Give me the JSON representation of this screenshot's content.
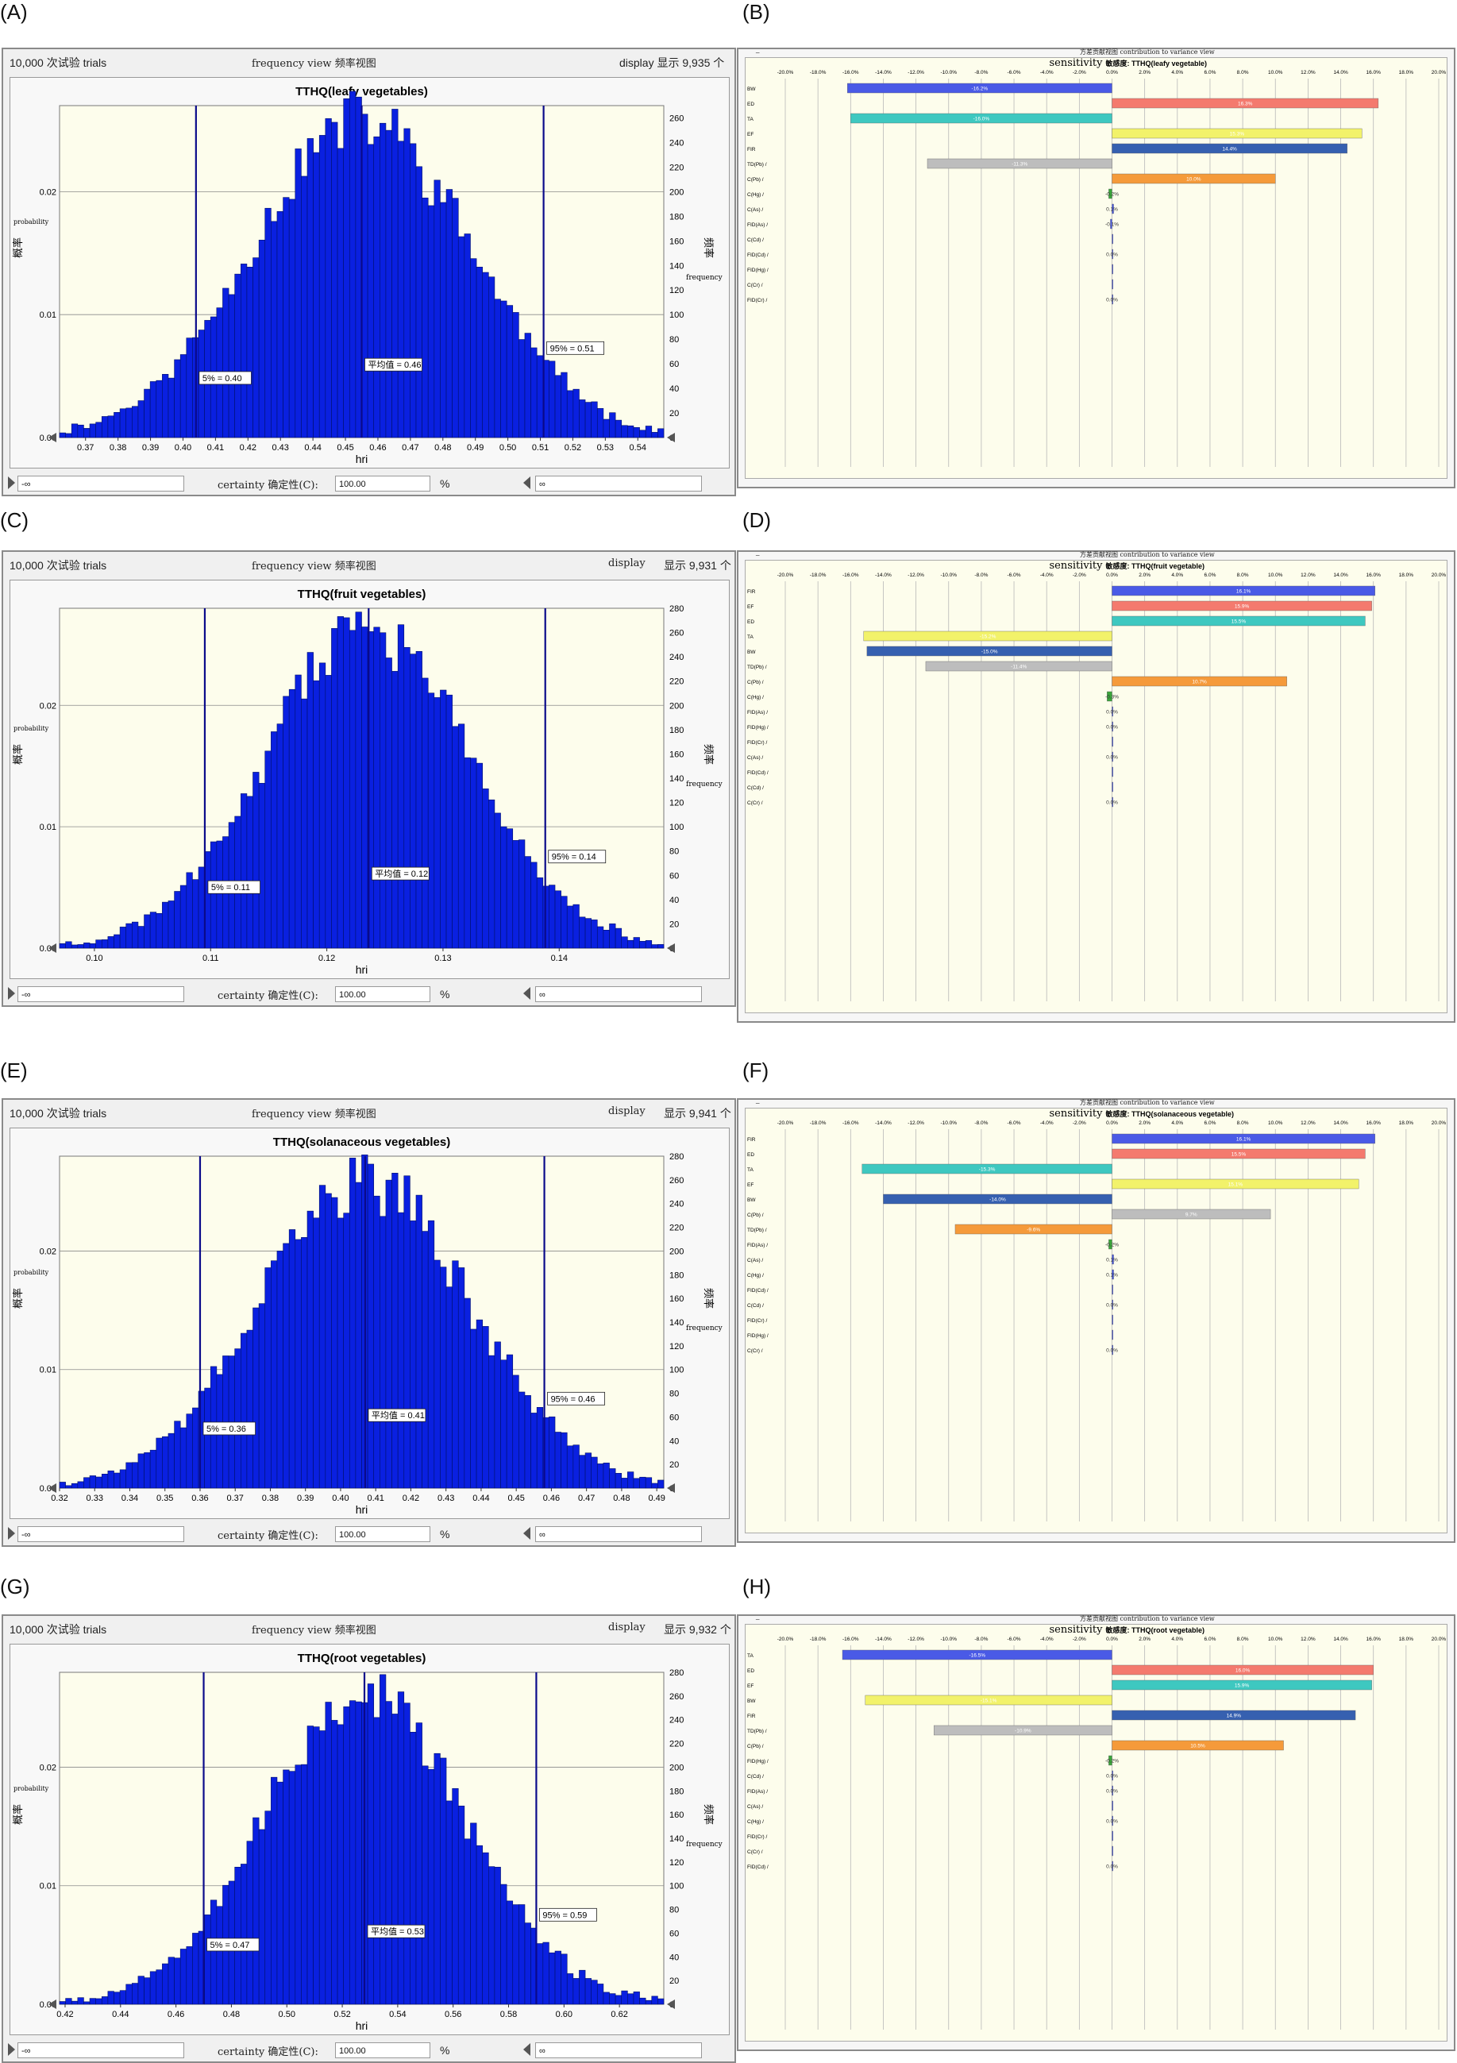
{
  "panel_labels": [
    "(A)",
    "(B)",
    "(C)",
    "(D)",
    "(E)",
    "(F)",
    "(G)",
    "(H)"
  ],
  "crystal": [
    {
      "trials_label": "10,000 次试验 trials",
      "view_label": "frequency view  频率视图",
      "display_label": "display",
      "display_count": "显示 9,935 个",
      "certainty_label": "certainty 确定性(C):",
      "certainty_value": "100.00",
      "percent": "%",
      "left_value": "-∞",
      "right_value": "∞"
    },
    {
      "trials_label": "10,000 次试验 trials",
      "view_label": "frequency view  频率视图",
      "display_label": "display",
      "display_count": "显示 9,931 个",
      "certainty_label": "certainty 确定性(C):",
      "certainty_value": "100.00",
      "percent": "%",
      "left_value": "-∞",
      "right_value": "∞"
    },
    {
      "trials_label": "10,000 次试验 trials",
      "view_label": "frequency view  频率视图",
      "display_label": "display",
      "display_count": "显示 9,941 个",
      "certainty_label": "certainty 确定性(C):",
      "certainty_value": "100.00",
      "percent": "%",
      "left_value": "-∞",
      "right_value": "∞"
    },
    {
      "trials_label": "10,000 次试验 trials",
      "view_label": "frequency view  频率视图",
      "display_label": "display",
      "display_count": "显示 9,932 个",
      "certainty_label": "certainty 确定性(C):",
      "certainty_value": "100.00",
      "percent": "%",
      "left_value": "-∞",
      "right_value": "∞"
    }
  ],
  "sens_header": [
    {
      "view_label": "方差贡献视图  contribution to variance view"
    },
    {
      "view_label": "方差贡献视图  contribution to variance view"
    },
    {
      "view_label": "方差贡献视图  contribution to variance view"
    },
    {
      "view_label": "方差贡献视图  contribution to variance view"
    }
  ],
  "colors": {
    "hist_bar": "#0a20e0",
    "hist_edge": "#00106a",
    "vline": "#0a0a8a",
    "plot_bg": "#fdfdec",
    "grid": "#8a8a8a",
    "sens_blue": "#4a5ae6",
    "sens_red": "#f47a6e",
    "sens_teal": "#3ec8c0",
    "sens_yellow": "#f2f26a",
    "sens_navy": "#3660b0",
    "sens_gray": "#bdbdbd",
    "sens_orange": "#f59a3a",
    "sens_green": "#3aa53a"
  },
  "chart_data": [
    {
      "type": "bar",
      "title": "TTHQ(leafy vegetables)",
      "xlabel": "hri",
      "ylabel_left": "概率",
      "ylabel_left_en": "probability",
      "ylabel_right": "频率",
      "ylabel_right_en": "frequency",
      "x_range": [
        0.362,
        0.548
      ],
      "x_ticks": [
        "0.37",
        "0.38",
        "0.39",
        "0.40",
        "0.41",
        "0.42",
        "0.43",
        "0.44",
        "0.45",
        "0.46",
        "0.47",
        "0.48",
        "0.49",
        "0.50",
        "0.51",
        "0.52",
        "0.53",
        "0.54"
      ],
      "y_left_ticks": [
        "0.00",
        "0.01",
        "0.02"
      ],
      "y_right_max": 270,
      "y_right_ticks": [
        "0",
        "20",
        "40",
        "60",
        "80",
        "100",
        "120",
        "140",
        "160",
        "180",
        "200",
        "220",
        "240",
        "260"
      ],
      "mean": 0.455,
      "sd": 0.0335,
      "peak": 258,
      "bins": 100,
      "seed": 11,
      "markers": [
        {
          "x": 0.404,
          "label": "5% = 0.40"
        },
        {
          "x": 0.455,
          "label": "平均值 = 0.46"
        },
        {
          "x": 0.511,
          "label": "95% = 0.51"
        }
      ]
    },
    {
      "type": "bar",
      "title": "TTHQ(fruit vegetables)",
      "xlabel": "hri",
      "ylabel_left": "概率",
      "ylabel_left_en": "probability",
      "ylabel_right": "频率",
      "ylabel_right_en": "frequency",
      "x_range": [
        0.097,
        0.149
      ],
      "x_ticks": [
        "0.10",
        "0.11",
        "0.12",
        "0.13",
        "0.14"
      ],
      "y_left_ticks": [
        "0.00",
        "0.01",
        "0.02"
      ],
      "y_right_max": 280,
      "y_right_ticks": [
        "0",
        "20",
        "40",
        "60",
        "80",
        "100",
        "120",
        "140",
        "160",
        "180",
        "200",
        "220",
        "240",
        "260",
        "280"
      ],
      "mean": 0.1235,
      "sd": 0.0088,
      "peak": 260,
      "bins": 100,
      "seed": 23,
      "markers": [
        {
          "x": 0.1095,
          "label": "5% = 0.11"
        },
        {
          "x": 0.1236,
          "label": "平均值 = 0.12"
        },
        {
          "x": 0.1388,
          "label": "95% = 0.14"
        }
      ]
    },
    {
      "type": "bar",
      "title": "TTHQ(solanaceous vegetables)",
      "xlabel": "hri",
      "ylabel_left": "概率",
      "ylabel_left_en": "probability",
      "ylabel_right": "频率",
      "ylabel_right_en": "frequency",
      "x_range": [
        0.32,
        0.492
      ],
      "x_ticks": [
        "0.32",
        "0.33",
        "0.34",
        "0.35",
        "0.36",
        "0.37",
        "0.38",
        "0.39",
        "0.40",
        "0.41",
        "0.42",
        "0.43",
        "0.44",
        "0.45",
        "0.46",
        "0.47",
        "0.48",
        "0.49"
      ],
      "y_left_ticks": [
        "0.00",
        "0.01",
        "0.02"
      ],
      "y_right_max": 280,
      "y_right_ticks": [
        "0",
        "20",
        "40",
        "60",
        "80",
        "100",
        "120",
        "140",
        "160",
        "180",
        "200",
        "220",
        "240",
        "260",
        "280"
      ],
      "mean": 0.407,
      "sd": 0.03,
      "peak": 258,
      "bins": 100,
      "seed": 37,
      "markers": [
        {
          "x": 0.36,
          "label": "5% = 0.36"
        },
        {
          "x": 0.407,
          "label": "平均值 = 0.41"
        },
        {
          "x": 0.458,
          "label": "95% = 0.46"
        }
      ]
    },
    {
      "type": "bar",
      "title": "TTHQ(root vegetables)",
      "xlabel": "hri",
      "ylabel_left": "概率",
      "ylabel_left_en": "probability",
      "ylabel_right": "频率",
      "ylabel_right_en": "frequency",
      "x_range": [
        0.418,
        0.636
      ],
      "x_ticks": [
        "0.42",
        "0.44",
        "0.46",
        "0.48",
        "0.50",
        "0.52",
        "0.54",
        "0.56",
        "0.58",
        "0.60",
        "0.62"
      ],
      "y_left_ticks": [
        "0.00",
        "0.01",
        "0.02"
      ],
      "y_right_max": 280,
      "y_right_ticks": [
        "0",
        "20",
        "40",
        "60",
        "80",
        "100",
        "120",
        "140",
        "160",
        "180",
        "200",
        "220",
        "240",
        "260",
        "280"
      ],
      "mean": 0.528,
      "sd": 0.036,
      "peak": 262,
      "bins": 100,
      "seed": 53,
      "markers": [
        {
          "x": 0.47,
          "label": "5% = 0.47"
        },
        {
          "x": 0.528,
          "label": "平均值 = 0.53"
        },
        {
          "x": 0.59,
          "label": "95% = 0.59"
        }
      ]
    },
    {
      "type": "bar",
      "orientation": "horizontal",
      "title_en": "sensitivity",
      "title": "敏感度: TTHQ(leafy vegetable)",
      "x_range": [
        -20,
        20
      ],
      "x_ticks": [
        "-20.0%",
        "-18.0%",
        "-16.0%",
        "-14.0%",
        "-12.0%",
        "-10.0%",
        "-8.0%",
        "-6.0%",
        "-4.0%",
        "-2.0%",
        "0.0%",
        "2.0%",
        "4.0%",
        "6.0%",
        "8.0%",
        "10.0%",
        "12.0%",
        "14.0%",
        "16.0%",
        "18.0%",
        "20.0%"
      ],
      "categories": [
        "BW",
        "ED",
        "TA",
        "EF",
        "FIR",
        "TD(Pb) /",
        "C(Pb) /",
        "C(Hg) /",
        "C(As) /",
        "FID(As) /",
        "C(Cd) /",
        "FID(Cd) /",
        "FID(Hg) /",
        "C(Cr) /",
        "FID(Cr) /"
      ],
      "values": [
        -16.2,
        16.3,
        -16.0,
        15.3,
        14.4,
        -11.3,
        10.0,
        -0.2,
        0.1,
        -0.1,
        0.0,
        0.0,
        0.0,
        0.0,
        0.0
      ],
      "value_labels": [
        "-16.2%",
        "16.3%",
        "-16.0%",
        "15.3%",
        "14.4%",
        "-11.3%",
        "10.0%",
        "-0.2%",
        "0.1%",
        "-0.1%",
        "",
        "0.0%",
        "",
        "",
        "0.0%"
      ],
      "colors": [
        "sens_blue",
        "sens_red",
        "sens_teal",
        "sens_yellow",
        "sens_navy",
        "sens_gray",
        "sens_orange",
        "sens_green",
        "sens_blue",
        "sens_blue",
        "sens_blue",
        "sens_blue",
        "sens_blue",
        "sens_blue",
        "sens_blue"
      ]
    },
    {
      "type": "bar",
      "orientation": "horizontal",
      "title_en": "sensitivity",
      "title": "敏感度: TTHQ(fruit vegetable)",
      "x_range": [
        -20,
        20
      ],
      "x_ticks": [
        "-20.0%",
        "-18.0%",
        "-16.0%",
        "-14.0%",
        "-12.0%",
        "-10.0%",
        "-8.0%",
        "-6.0%",
        "-4.0%",
        "-2.0%",
        "0.0%",
        "2.0%",
        "4.0%",
        "6.0%",
        "8.0%",
        "10.0%",
        "12.0%",
        "14.0%",
        "16.0%",
        "18.0%",
        "20.0%"
      ],
      "categories": [
        "FIR",
        "EF",
        "ED",
        "TA",
        "BW",
        "TD(Pb) /",
        "C(Pb) /",
        "C(Hg) /",
        "FID(As) /",
        "FID(Hg) /",
        "FID(Cr) /",
        "C(As) /",
        "FID(Cd) /",
        "C(Cd) /",
        "C(Cr) /"
      ],
      "values": [
        16.1,
        15.9,
        15.5,
        -15.2,
        -15.0,
        -11.4,
        10.7,
        -0.3,
        0.0,
        0.0,
        0.0,
        0.0,
        0.0,
        0.0,
        0.0
      ],
      "value_labels": [
        "16.1%",
        "15.9%",
        "15.5%",
        "-15.2%",
        "-15.0%",
        "-11.4%",
        "10.7%",
        "-0.3%",
        "0.0%",
        "0.0%",
        "",
        "0.0%",
        "",
        "",
        "0.0%"
      ],
      "colors": [
        "sens_blue",
        "sens_red",
        "sens_teal",
        "sens_yellow",
        "sens_navy",
        "sens_gray",
        "sens_orange",
        "sens_green",
        "sens_blue",
        "sens_blue",
        "sens_blue",
        "sens_blue",
        "sens_blue",
        "sens_blue",
        "sens_blue"
      ]
    },
    {
      "type": "bar",
      "orientation": "horizontal",
      "title_en": "sensitivity",
      "title": "敏感度: TTHQ(solanaceous vegetable)",
      "x_range": [
        -20,
        20
      ],
      "x_ticks": [
        "-20.0%",
        "-18.0%",
        "-16.0%",
        "-14.0%",
        "-12.0%",
        "-10.0%",
        "-8.0%",
        "-6.0%",
        "-4.0%",
        "-2.0%",
        "0.0%",
        "2.0%",
        "4.0%",
        "6.0%",
        "8.0%",
        "10.0%",
        "12.0%",
        "14.0%",
        "16.0%",
        "18.0%",
        "20.0%"
      ],
      "categories": [
        "FIR",
        "ED",
        "TA",
        "EF",
        "BW",
        "C(Pb) /",
        "TD(Pb) /",
        "FID(As) /",
        "C(As) /",
        "C(Hg) /",
        "FID(Cd) /",
        "C(Cd) /",
        "FID(Cr) /",
        "FID(Hg) /",
        "C(Cr) /"
      ],
      "values": [
        16.1,
        15.5,
        -15.3,
        15.1,
        -14.0,
        9.7,
        -9.6,
        -0.2,
        0.1,
        0.1,
        0.0,
        0.0,
        0.0,
        0.0,
        0.0
      ],
      "value_labels": [
        "16.1%",
        "15.5%",
        "-15.3%",
        "15.1%",
        "-14.0%",
        "9.7%",
        "-9.6%",
        "-0.2%",
        "0.1%",
        "0.1%",
        "",
        "0.0%",
        "",
        "",
        "0.0%"
      ],
      "colors": [
        "sens_blue",
        "sens_red",
        "sens_teal",
        "sens_yellow",
        "sens_navy",
        "sens_gray",
        "sens_orange",
        "sens_green",
        "sens_blue",
        "sens_blue",
        "sens_blue",
        "sens_blue",
        "sens_blue",
        "sens_blue",
        "sens_blue"
      ]
    },
    {
      "type": "bar",
      "orientation": "horizontal",
      "title_en": "sensitivity",
      "title": "敏感度: TTHQ(root vegetable)",
      "x_range": [
        -20,
        20
      ],
      "x_ticks": [
        "-20.0%",
        "-18.0%",
        "-16.0%",
        "-14.0%",
        "-12.0%",
        "-10.0%",
        "-8.0%",
        "-6.0%",
        "-4.0%",
        "-2.0%",
        "0.0%",
        "2.0%",
        "4.0%",
        "6.0%",
        "8.0%",
        "10.0%",
        "12.0%",
        "14.0%",
        "16.0%",
        "18.0%",
        "20.0%"
      ],
      "categories": [
        "TA",
        "ED",
        "EF",
        "BW",
        "FIR",
        "TD(Pb) /",
        "C(Pb) /",
        "FID(Hg) /",
        "C(Cd) /",
        "FID(As) /",
        "C(As) /",
        "C(Hg) /",
        "FID(Cr) /",
        "C(Cr) /",
        "FID(Cd) /"
      ],
      "values": [
        -16.5,
        16.0,
        15.9,
        -15.1,
        14.9,
        -10.9,
        10.5,
        -0.2,
        0.0,
        0.0,
        0.0,
        0.0,
        0.0,
        0.0,
        0.0
      ],
      "value_labels": [
        "-16.5%",
        "16.0%",
        "15.9%",
        "-15.1%",
        "14.9%",
        "-10.9%",
        "10.5%",
        "-0.2%",
        "0.0%",
        "0.0%",
        "",
        "0.0%",
        "",
        "",
        "0.0%"
      ],
      "colors": [
        "sens_blue",
        "sens_red",
        "sens_teal",
        "sens_yellow",
        "sens_navy",
        "sens_gray",
        "sens_orange",
        "sens_green",
        "sens_blue",
        "sens_blue",
        "sens_blue",
        "sens_blue",
        "sens_blue",
        "sens_blue",
        "sens_blue"
      ]
    }
  ]
}
